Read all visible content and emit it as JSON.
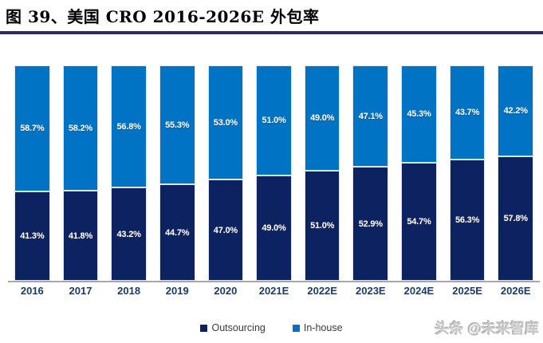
{
  "figure": {
    "title": "图 39、美国 CRO 2016-2026E 外包率"
  },
  "chart_data": {
    "type": "bar",
    "stacked": true,
    "unit": "%",
    "title": "图 39、美国 CRO 2016-2026E 外包率",
    "categories": [
      "2016",
      "2017",
      "2018",
      "2019",
      "2020",
      "2021E",
      "2022E",
      "2023E",
      "2024E",
      "2025E",
      "2026E"
    ],
    "series": [
      {
        "name": "Outsourcing",
        "color": "#0d2260",
        "position": "bottom",
        "values": [
          41.3,
          41.8,
          43.2,
          44.7,
          47.0,
          49.0,
          51.0,
          52.9,
          54.7,
          56.3,
          57.8
        ]
      },
      {
        "name": "In-house",
        "color": "#0173c5",
        "position": "top",
        "values": [
          58.7,
          58.2,
          56.8,
          55.3,
          53.0,
          51.0,
          49.0,
          47.1,
          45.3,
          43.7,
          42.2
        ]
      }
    ],
    "ylim": [
      0,
      100
    ],
    "grid": false,
    "legend_position": "bottom",
    "value_label_format": "0.0%"
  },
  "legend": {
    "items": [
      {
        "label": "Outsourcing",
        "color": "#0d2260"
      },
      {
        "label": "In-house",
        "color": "#0173c5"
      }
    ]
  },
  "watermark": "头条 @未来智库"
}
